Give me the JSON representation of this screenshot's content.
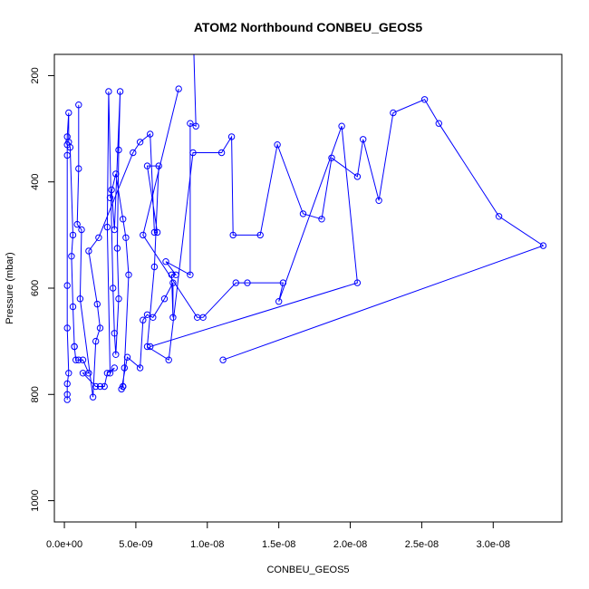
{
  "chart_data": {
    "type": "line",
    "title": "ATOM2 Northbound CONBEU_GEOS5",
    "xlabel": "CONBEU_GEOS5",
    "ylabel": "Pressure (mbar)",
    "xlim": [
      -7e-10,
      3.48e-08
    ],
    "ylim": [
      1040,
      160
    ],
    "y_reversed": true,
    "x_ticks": [
      {
        "value": 0,
        "label": "0.0e+00"
      },
      {
        "value": 5e-09,
        "label": "5.0e-09"
      },
      {
        "value": 1e-08,
        "label": "1.0e-08"
      },
      {
        "value": 1.5e-08,
        "label": "1.5e-08"
      },
      {
        "value": 2e-08,
        "label": "2.0e-08"
      },
      {
        "value": 2.5e-08,
        "label": "2.5e-08"
      },
      {
        "value": 3e-08,
        "label": "3.0e-08"
      }
    ],
    "y_ticks": [
      {
        "value": 200,
        "label": "200"
      },
      {
        "value": 400,
        "label": "400"
      },
      {
        "value": 600,
        "label": "600"
      },
      {
        "value": 800,
        "label": "800"
      },
      {
        "value": 1000,
        "label": "1000"
      }
    ],
    "grid": false,
    "legend": "none",
    "series_color": "#0000ff",
    "marker": "open-circle",
    "series": [
      {
        "points": [
          [
            2e-10,
            810
          ],
          [
            2e-10,
            800
          ],
          [
            2e-10,
            780
          ],
          [
            3e-10,
            760
          ],
          [
            2e-10,
            675
          ],
          [
            2e-10,
            595
          ],
          [
            2e-10,
            350
          ],
          [
            2e-10,
            330
          ],
          [
            2e-10,
            315
          ],
          [
            3e-10,
            270
          ],
          [
            3e-10,
            325
          ],
          [
            4e-10,
            335
          ],
          [
            6e-10,
            500
          ],
          [
            5e-10,
            540
          ],
          [
            6e-10,
            635
          ],
          [
            7e-10,
            710
          ],
          [
            7e-10,
            710
          ],
          [
            8e-10,
            735
          ],
          [
            1e-09,
            735
          ],
          [
            1.3e-09,
            735
          ],
          [
            1.7e-09,
            760
          ],
          [
            1.3e-09,
            760
          ],
          [
            2.2e-09,
            785
          ],
          [
            2.5e-09,
            785
          ],
          [
            2.8e-09,
            785
          ],
          [
            3e-09,
            760
          ],
          [
            3.5e-09,
            750
          ],
          [
            3.2e-09,
            760
          ],
          [
            3e-09,
            485
          ],
          [
            3.1e-09,
            230
          ],
          [
            3.4e-09,
            600
          ],
          [
            3.5e-09,
            685
          ],
          [
            3.6e-09,
            725
          ],
          [
            3.8e-09,
            620
          ],
          [
            3.7e-09,
            525
          ],
          [
            3.8e-09,
            340
          ],
          [
            3.9e-09,
            230
          ],
          [
            3.5e-09,
            490
          ],
          [
            3.3e-09,
            415
          ],
          [
            3.2e-09,
            430
          ],
          [
            3.6e-09,
            385
          ],
          [
            4.1e-09,
            470
          ],
          [
            4.3e-09,
            505
          ],
          [
            4.5e-09,
            575
          ],
          [
            4.2e-09,
            750
          ],
          [
            4.1e-09,
            785
          ],
          [
            4.1e-09,
            785
          ],
          [
            4e-09,
            790
          ],
          [
            4.4e-09,
            730
          ],
          [
            5.3e-09,
            750
          ],
          [
            5.5e-09,
            660
          ],
          [
            5.8e-09,
            650
          ],
          [
            6.2e-09,
            655
          ],
          [
            7e-09,
            620
          ],
          [
            7.6e-09,
            590
          ],
          [
            7.6e-09,
            655
          ],
          [
            7.5e-09,
            575
          ],
          [
            7.8e-09,
            575
          ],
          [
            7.1e-09,
            550
          ],
          [
            8.8e-09,
            575
          ],
          [
            8.8e-09,
            290
          ],
          [
            9.2e-09,
            295
          ],
          [
            9e-09,
            100
          ]
        ]
      },
      {
        "points": [
          [
            1e-09,
            255
          ],
          [
            1e-09,
            375
          ],
          [
            9e-10,
            480
          ],
          [
            1.2e-09,
            490
          ],
          [
            1.1e-09,
            620
          ],
          [
            2e-09,
            805
          ],
          [
            2.2e-09,
            700
          ],
          [
            2.5e-09,
            675
          ],
          [
            2.3e-09,
            630
          ],
          [
            1.7e-09,
            530
          ],
          [
            2.4e-09,
            505
          ],
          [
            4.8e-09,
            345
          ],
          [
            5.3e-09,
            325
          ],
          [
            6e-09,
            310
          ],
          [
            6.3e-09,
            495
          ],
          [
            6.5e-09,
            495
          ],
          [
            5.8e-09,
            370
          ],
          [
            6.6e-09,
            370
          ],
          [
            6.3e-09,
            560
          ],
          [
            5.8e-09,
            710
          ],
          [
            7.3e-09,
            735
          ],
          [
            9e-09,
            345
          ],
          [
            1.1e-08,
            345
          ],
          [
            1.17e-08,
            315
          ],
          [
            1.18e-08,
            500
          ],
          [
            1.37e-08,
            500
          ],
          [
            1.49e-08,
            330
          ],
          [
            1.67e-08,
            460
          ],
          [
            1.8e-08,
            470
          ],
          [
            1.87e-08,
            355
          ],
          [
            2.05e-08,
            390
          ],
          [
            2.09e-08,
            320
          ],
          [
            2.2e-08,
            435
          ],
          [
            2.3e-08,
            270
          ],
          [
            2.52e-08,
            245
          ],
          [
            2.62e-08,
            290
          ],
          [
            3.04e-08,
            465
          ],
          [
            3.35e-08,
            520
          ],
          [
            1.11e-08,
            735
          ]
        ]
      },
      {
        "points": [
          [
            8e-09,
            225
          ],
          [
            5.5e-09,
            500
          ],
          [
            9.3e-09,
            655
          ],
          [
            9.7e-09,
            655
          ],
          [
            1.2e-08,
            590
          ],
          [
            1.28e-08,
            590
          ],
          [
            1.53e-08,
            590
          ],
          [
            1.5e-08,
            625
          ],
          [
            1.94e-08,
            295
          ],
          [
            2.05e-08,
            590
          ],
          [
            6e-09,
            710
          ]
        ]
      }
    ]
  }
}
